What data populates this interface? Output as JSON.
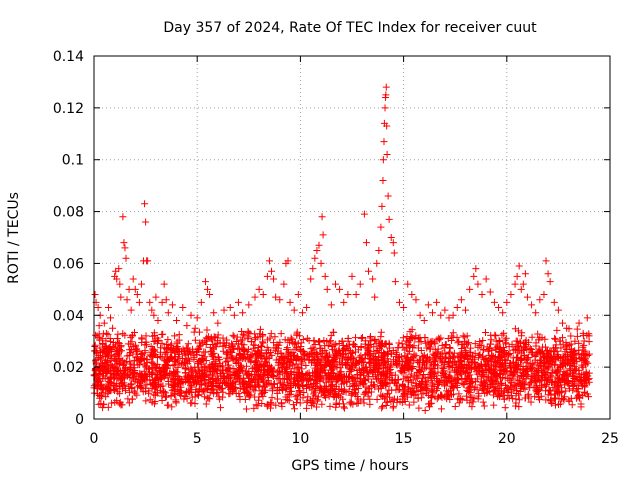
{
  "chart_data": {
    "type": "scatter",
    "title": "Day 357 of 2024, Rate Of TEC Index for receiver cuut",
    "xlabel": "GPS time / hours",
    "ylabel": "ROTI / TECUs",
    "xlim": [
      0,
      25
    ],
    "ylim": [
      0,
      0.14
    ],
    "xticks": [
      0,
      5,
      10,
      15,
      20,
      25
    ],
    "xtick_labels": [
      "0",
      "5",
      "10",
      "15",
      "20",
      "25"
    ],
    "yticks": [
      0,
      0.02,
      0.04,
      0.06,
      0.08,
      0.1,
      0.12,
      0.14
    ],
    "ytick_labels": [
      "0",
      "0.02",
      "0.04",
      "0.06",
      "0.08",
      "0.1",
      "0.12",
      "0.14"
    ],
    "grid": true,
    "marker": "+",
    "color": "#ff0000",
    "series": [
      {
        "name": "ROTI",
        "points": [
          [
            0.0,
            0.012
          ],
          [
            0.05,
            0.048
          ],
          [
            0.1,
            0.045
          ],
          [
            0.15,
            0.032
          ],
          [
            0.2,
            0.043
          ],
          [
            0.25,
            0.036
          ],
          [
            0.3,
            0.04
          ],
          [
            0.4,
            0.031
          ],
          [
            0.5,
            0.037
          ],
          [
            0.6,
            0.033
          ],
          [
            0.7,
            0.043
          ],
          [
            0.8,
            0.039
          ],
          [
            0.9,
            0.035
          ],
          [
            1.0,
            0.055
          ],
          [
            1.05,
            0.057
          ],
          [
            1.1,
            0.054
          ],
          [
            1.2,
            0.058
          ],
          [
            1.25,
            0.052
          ],
          [
            1.3,
            0.047
          ],
          [
            1.4,
            0.078
          ],
          [
            1.45,
            0.068
          ],
          [
            1.5,
            0.066
          ],
          [
            1.55,
            0.062
          ],
          [
            1.6,
            0.046
          ],
          [
            1.7,
            0.05
          ],
          [
            1.8,
            0.042
          ],
          [
            1.9,
            0.054
          ],
          [
            2.0,
            0.05
          ],
          [
            2.1,
            0.048
          ],
          [
            2.2,
            0.045
          ],
          [
            2.3,
            0.052
          ],
          [
            2.4,
            0.061
          ],
          [
            2.45,
            0.083
          ],
          [
            2.5,
            0.076
          ],
          [
            2.55,
            0.061
          ],
          [
            2.6,
            0.061
          ],
          [
            2.7,
            0.045
          ],
          [
            2.8,
            0.042
          ],
          [
            2.9,
            0.04
          ],
          [
            3.0,
            0.047
          ],
          [
            3.1,
            0.038
          ],
          [
            3.3,
            0.045
          ],
          [
            3.4,
            0.052
          ],
          [
            3.5,
            0.046
          ],
          [
            3.6,
            0.041
          ],
          [
            3.8,
            0.044
          ],
          [
            4.0,
            0.038
          ],
          [
            4.3,
            0.043
          ],
          [
            4.5,
            0.036
          ],
          [
            4.7,
            0.04
          ],
          [
            4.9,
            0.035
          ],
          [
            5.0,
            0.039
          ],
          [
            5.2,
            0.045
          ],
          [
            5.4,
            0.053
          ],
          [
            5.5,
            0.05
          ],
          [
            5.6,
            0.048
          ],
          [
            5.8,
            0.041
          ],
          [
            6.0,
            0.037
          ],
          [
            6.3,
            0.042
          ],
          [
            6.6,
            0.043
          ],
          [
            6.8,
            0.04
          ],
          [
            7.0,
            0.045
          ],
          [
            7.2,
            0.041
          ],
          [
            7.5,
            0.044
          ],
          [
            7.8,
            0.047
          ],
          [
            8.0,
            0.05
          ],
          [
            8.2,
            0.048
          ],
          [
            8.4,
            0.055
          ],
          [
            8.5,
            0.061
          ],
          [
            8.6,
            0.057
          ],
          [
            8.7,
            0.054
          ],
          [
            8.8,
            0.047
          ],
          [
            9.0,
            0.046
          ],
          [
            9.2,
            0.052
          ],
          [
            9.3,
            0.06
          ],
          [
            9.4,
            0.061
          ],
          [
            9.5,
            0.045
          ],
          [
            9.7,
            0.042
          ],
          [
            9.9,
            0.048
          ],
          [
            10.1,
            0.041
          ],
          [
            10.3,
            0.043
          ],
          [
            10.5,
            0.054
          ],
          [
            10.6,
            0.058
          ],
          [
            10.7,
            0.062
          ],
          [
            10.8,
            0.065
          ],
          [
            10.9,
            0.067
          ],
          [
            11.0,
            0.06
          ],
          [
            11.05,
            0.078
          ],
          [
            11.1,
            0.071
          ],
          [
            11.2,
            0.055
          ],
          [
            11.3,
            0.05
          ],
          [
            11.5,
            0.044
          ],
          [
            11.7,
            0.052
          ],
          [
            11.9,
            0.05
          ],
          [
            12.1,
            0.045
          ],
          [
            12.3,
            0.048
          ],
          [
            12.5,
            0.055
          ],
          [
            12.7,
            0.048
          ],
          [
            12.9,
            0.052
          ],
          [
            13.1,
            0.079
          ],
          [
            13.2,
            0.068
          ],
          [
            13.3,
            0.057
          ],
          [
            13.5,
            0.054
          ],
          [
            13.6,
            0.047
          ],
          [
            13.7,
            0.06
          ],
          [
            13.8,
            0.065
          ],
          [
            13.9,
            0.074
          ],
          [
            13.95,
            0.082
          ],
          [
            14.0,
            0.092
          ],
          [
            14.02,
            0.1
          ],
          [
            14.05,
            0.107
          ],
          [
            14.07,
            0.114
          ],
          [
            14.1,
            0.12
          ],
          [
            14.12,
            0.124
          ],
          [
            14.14,
            0.125
          ],
          [
            14.16,
            0.128
          ],
          [
            14.18,
            0.113
          ],
          [
            14.2,
            0.102
          ],
          [
            14.25,
            0.086
          ],
          [
            14.3,
            0.077
          ],
          [
            14.4,
            0.07
          ],
          [
            14.5,
            0.068
          ],
          [
            14.55,
            0.064
          ],
          [
            14.6,
            0.053
          ],
          [
            14.8,
            0.045
          ],
          [
            15.0,
            0.043
          ],
          [
            15.2,
            0.052
          ],
          [
            15.4,
            0.048
          ],
          [
            15.6,
            0.046
          ],
          [
            15.8,
            0.04
          ],
          [
            16.0,
            0.038
          ],
          [
            16.2,
            0.044
          ],
          [
            16.4,
            0.041
          ],
          [
            16.6,
            0.045
          ],
          [
            16.8,
            0.04
          ],
          [
            17.0,
            0.042
          ],
          [
            17.2,
            0.039
          ],
          [
            17.4,
            0.04
          ],
          [
            17.6,
            0.043
          ],
          [
            17.8,
            0.046
          ],
          [
            18.0,
            0.042
          ],
          [
            18.2,
            0.05
          ],
          [
            18.4,
            0.055
          ],
          [
            18.5,
            0.058
          ],
          [
            18.6,
            0.052
          ],
          [
            18.8,
            0.048
          ],
          [
            19.0,
            0.054
          ],
          [
            19.2,
            0.049
          ],
          [
            19.4,
            0.045
          ],
          [
            19.6,
            0.043
          ],
          [
            19.8,
            0.041
          ],
          [
            20.0,
            0.045
          ],
          [
            20.2,
            0.048
          ],
          [
            20.4,
            0.052
          ],
          [
            20.5,
            0.055
          ],
          [
            20.6,
            0.059
          ],
          [
            20.7,
            0.05
          ],
          [
            20.8,
            0.052
          ],
          [
            20.9,
            0.056
          ],
          [
            21.0,
            0.047
          ],
          [
            21.2,
            0.044
          ],
          [
            21.4,
            0.041
          ],
          [
            21.6,
            0.046
          ],
          [
            21.8,
            0.048
          ],
          [
            21.9,
            0.061
          ],
          [
            22.0,
            0.056
          ],
          [
            22.1,
            0.053
          ],
          [
            22.3,
            0.045
          ],
          [
            22.5,
            0.042
          ],
          [
            22.7,
            0.037
          ],
          [
            22.9,
            0.035
          ],
          [
            23.1,
            0.032
          ],
          [
            23.3,
            0.03
          ],
          [
            23.5,
            0.037
          ],
          [
            23.7,
            0.033
          ],
          [
            23.9,
            0.039
          ],
          [
            24.0,
            0.025
          ]
        ]
      }
    ],
    "noise_band": {
      "description": "dense background cloud of ROTI samples",
      "x_range": [
        0,
        24
      ],
      "y_range": [
        0.003,
        0.035
      ]
    }
  }
}
